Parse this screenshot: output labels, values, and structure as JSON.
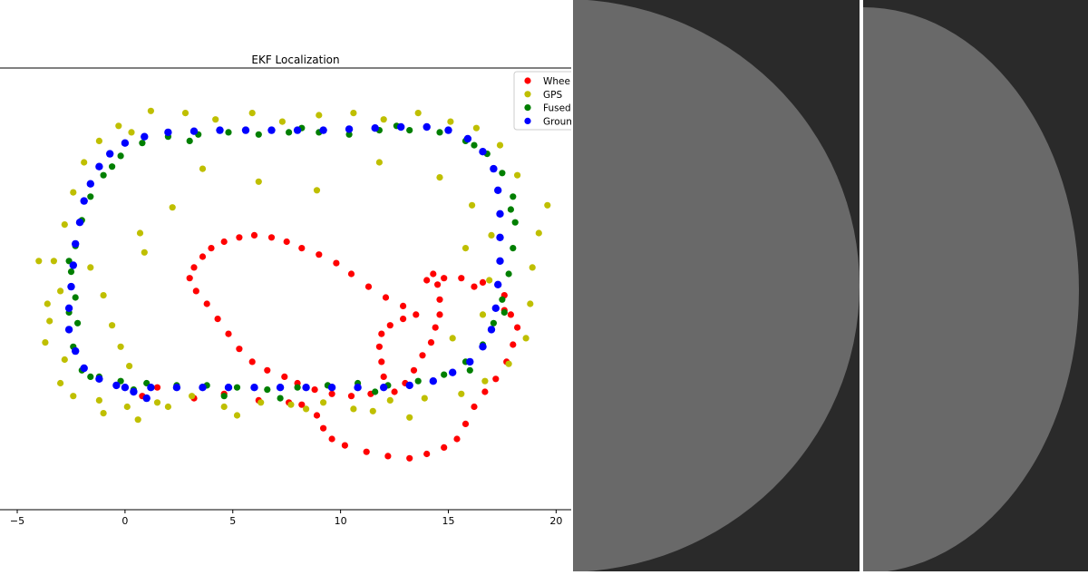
{
  "chart_data": {
    "type": "scatter",
    "title": "EKF Localization",
    "xlim": [
      -5.8,
      20.7
    ],
    "ylim": [
      -5.6,
      15.0
    ],
    "xticks": [
      -5,
      0,
      5,
      10,
      15,
      20
    ],
    "grid": false,
    "legend_position": "top-right",
    "series": [
      {
        "name": "Wheel",
        "color": "#ff0000",
        "points": [
          [
            0.8,
            -0.3
          ],
          [
            1.5,
            0.1
          ],
          [
            3.2,
            -0.4
          ],
          [
            4.6,
            -0.2
          ],
          [
            6.2,
            -0.5
          ],
          [
            7.6,
            -0.6
          ],
          [
            8.2,
            -0.7
          ],
          [
            8.9,
            -1.2
          ],
          [
            9.2,
            -1.8
          ],
          [
            9.6,
            -2.3
          ],
          [
            10.2,
            -2.6
          ],
          [
            11.2,
            -2.9
          ],
          [
            12.2,
            -3.1
          ],
          [
            13.2,
            -3.2
          ],
          [
            14.0,
            -3.0
          ],
          [
            14.8,
            -2.7
          ],
          [
            15.4,
            -2.3
          ],
          [
            15.8,
            -1.6
          ],
          [
            16.2,
            -0.8
          ],
          [
            16.7,
            -0.1
          ],
          [
            17.2,
            0.5
          ],
          [
            17.7,
            1.3
          ],
          [
            18.0,
            2.1
          ],
          [
            18.2,
            2.9
          ],
          [
            17.9,
            3.5
          ],
          [
            17.6,
            3.7
          ],
          [
            17.6,
            4.4
          ],
          [
            17.3,
            4.9
          ],
          [
            16.6,
            5.0
          ],
          [
            16.2,
            4.8
          ],
          [
            15.6,
            5.2
          ],
          [
            14.8,
            5.2
          ],
          [
            14.0,
            5.1
          ],
          [
            14.3,
            5.4
          ],
          [
            14.5,
            4.9
          ],
          [
            14.6,
            4.2
          ],
          [
            14.6,
            3.5
          ],
          [
            14.4,
            2.9
          ],
          [
            14.2,
            2.2
          ],
          [
            13.8,
            1.6
          ],
          [
            13.4,
            0.9
          ],
          [
            13.0,
            0.3
          ],
          [
            12.5,
            -0.1
          ],
          [
            12.0,
            0.6
          ],
          [
            11.9,
            1.3
          ],
          [
            11.8,
            2.0
          ],
          [
            11.9,
            2.6
          ],
          [
            12.3,
            3.0
          ],
          [
            12.9,
            3.3
          ],
          [
            13.5,
            3.5
          ],
          [
            12.9,
            3.9
          ],
          [
            12.1,
            4.3
          ],
          [
            11.3,
            4.8
          ],
          [
            10.5,
            5.4
          ],
          [
            9.8,
            5.9
          ],
          [
            9.0,
            6.3
          ],
          [
            8.2,
            6.6
          ],
          [
            7.5,
            6.9
          ],
          [
            6.8,
            7.1
          ],
          [
            6.0,
            7.2
          ],
          [
            5.3,
            7.1
          ],
          [
            4.6,
            6.9
          ],
          [
            4.0,
            6.6
          ],
          [
            3.6,
            6.2
          ],
          [
            3.2,
            5.7
          ],
          [
            3.0,
            5.2
          ],
          [
            3.3,
            4.6
          ],
          [
            3.8,
            4.0
          ],
          [
            4.3,
            3.3
          ],
          [
            4.8,
            2.6
          ],
          [
            5.3,
            1.9
          ],
          [
            5.9,
            1.3
          ],
          [
            6.6,
            0.9
          ],
          [
            7.4,
            0.6
          ],
          [
            8.0,
            0.3
          ],
          [
            8.8,
            -0.0
          ],
          [
            9.6,
            -0.2
          ],
          [
            10.5,
            -0.3
          ],
          [
            11.4,
            -0.2
          ]
        ]
      },
      {
        "name": "GPS",
        "color": "#bfbf00",
        "points": [
          [
            -4.0,
            6.0
          ],
          [
            -3.6,
            4.0
          ],
          [
            -3.7,
            2.2
          ],
          [
            -3.0,
            0.3
          ],
          [
            -2.4,
            -0.3
          ],
          [
            -1.2,
            -0.5
          ],
          [
            0.1,
            -0.8
          ],
          [
            1.5,
            -0.6
          ],
          [
            3.1,
            -0.3
          ],
          [
            4.6,
            -0.8
          ],
          [
            6.3,
            -0.6
          ],
          [
            7.7,
            -0.7
          ],
          [
            9.2,
            -0.6
          ],
          [
            10.6,
            -0.9
          ],
          [
            12.3,
            -0.5
          ],
          [
            13.9,
            -0.4
          ],
          [
            15.6,
            -0.2
          ],
          [
            16.7,
            0.4
          ],
          [
            17.8,
            1.2
          ],
          [
            18.6,
            2.4
          ],
          [
            18.8,
            4.0
          ],
          [
            18.9,
            5.7
          ],
          [
            19.2,
            7.3
          ],
          [
            19.6,
            8.6
          ],
          [
            18.2,
            10.0
          ],
          [
            17.4,
            11.4
          ],
          [
            16.3,
            12.2
          ],
          [
            15.1,
            12.5
          ],
          [
            13.6,
            12.9
          ],
          [
            12.0,
            12.6
          ],
          [
            10.6,
            12.9
          ],
          [
            9.0,
            12.8
          ],
          [
            7.3,
            12.5
          ],
          [
            5.9,
            12.9
          ],
          [
            4.2,
            12.6
          ],
          [
            2.8,
            12.9
          ],
          [
            1.2,
            13.0
          ],
          [
            -0.3,
            12.3
          ],
          [
            -1.2,
            11.6
          ],
          [
            -1.9,
            10.6
          ],
          [
            -2.4,
            9.2
          ],
          [
            -2.8,
            7.7
          ],
          [
            -3.3,
            6.0
          ],
          [
            -3.0,
            4.6
          ],
          [
            -3.5,
            3.2
          ],
          [
            -2.8,
            1.4
          ],
          [
            0.3,
            12.0
          ],
          [
            3.6,
            10.3
          ],
          [
            2.2,
            8.5
          ],
          [
            6.2,
            9.7
          ],
          [
            8.9,
            9.3
          ],
          [
            11.8,
            10.6
          ],
          [
            14.6,
            9.9
          ],
          [
            16.1,
            8.6
          ],
          [
            15.8,
            6.6
          ],
          [
            0.7,
            7.3
          ],
          [
            0.9,
            6.4
          ],
          [
            -1.6,
            5.7
          ],
          [
            -1.0,
            4.4
          ],
          [
            -0.6,
            3.0
          ],
          [
            -0.2,
            2.0
          ],
          [
            0.2,
            1.1
          ],
          [
            15.2,
            2.4
          ],
          [
            16.6,
            3.5
          ],
          [
            16.9,
            5.1
          ],
          [
            17.0,
            7.2
          ],
          [
            2.0,
            -0.8
          ],
          [
            5.2,
            -1.2
          ],
          [
            8.4,
            -0.9
          ],
          [
            11.5,
            -1.0
          ],
          [
            13.2,
            -1.3
          ],
          [
            -1.0,
            -1.1
          ],
          [
            0.6,
            -1.4
          ]
        ]
      },
      {
        "name": "Fused",
        "color": "#007f00",
        "points": [
          [
            -2.0,
            0.9
          ],
          [
            -1.2,
            0.6
          ],
          [
            -0.2,
            0.4
          ],
          [
            1.0,
            0.3
          ],
          [
            2.4,
            0.2
          ],
          [
            3.8,
            0.2
          ],
          [
            5.2,
            0.1
          ],
          [
            6.6,
            0.0
          ],
          [
            8.0,
            0.1
          ],
          [
            9.4,
            0.2
          ],
          [
            10.8,
            0.3
          ],
          [
            12.2,
            0.2
          ],
          [
            13.6,
            0.4
          ],
          [
            14.8,
            0.7
          ],
          [
            15.8,
            1.3
          ],
          [
            16.6,
            2.1
          ],
          [
            17.1,
            3.1
          ],
          [
            17.5,
            4.2
          ],
          [
            17.8,
            5.4
          ],
          [
            18.0,
            6.6
          ],
          [
            18.1,
            7.8
          ],
          [
            18.0,
            9.0
          ],
          [
            17.5,
            10.1
          ],
          [
            16.8,
            11.0
          ],
          [
            15.8,
            11.6
          ],
          [
            14.6,
            12.0
          ],
          [
            13.2,
            12.1
          ],
          [
            11.8,
            12.1
          ],
          [
            10.4,
            11.9
          ],
          [
            9.0,
            12.0
          ],
          [
            7.6,
            12.0
          ],
          [
            6.2,
            11.9
          ],
          [
            4.8,
            12.0
          ],
          [
            3.4,
            11.9
          ],
          [
            2.0,
            11.8
          ],
          [
            0.8,
            11.5
          ],
          [
            -0.2,
            10.9
          ],
          [
            -1.0,
            10.0
          ],
          [
            -1.6,
            9.0
          ],
          [
            -2.0,
            7.9
          ],
          [
            -2.3,
            6.7
          ],
          [
            -2.5,
            5.5
          ],
          [
            -2.3,
            4.3
          ],
          [
            -2.2,
            3.1
          ],
          [
            -2.4,
            2.0
          ],
          [
            -1.6,
            0.6
          ],
          [
            0.4,
            0.0
          ],
          [
            4.6,
            -0.3
          ],
          [
            7.2,
            -0.4
          ],
          [
            11.6,
            -0.1
          ],
          [
            16.0,
            0.9
          ],
          [
            17.6,
            3.6
          ],
          [
            17.9,
            8.4
          ],
          [
            16.2,
            11.4
          ],
          [
            12.6,
            12.3
          ],
          [
            8.2,
            12.2
          ],
          [
            3.0,
            11.6
          ],
          [
            -0.6,
            10.4
          ],
          [
            -2.6,
            6.0
          ],
          [
            -2.6,
            3.6
          ]
        ]
      },
      {
        "name": "Ground Truth",
        "color": "#0000ff",
        "points": [
          [
            1.0,
            -0.4
          ],
          [
            0.4,
            -0.1
          ],
          [
            -0.4,
            0.2
          ],
          [
            -1.2,
            0.5
          ],
          [
            -1.9,
            1.0
          ],
          [
            -2.3,
            1.8
          ],
          [
            -2.6,
            2.8
          ],
          [
            -2.6,
            3.8
          ],
          [
            -2.5,
            4.8
          ],
          [
            -2.4,
            5.8
          ],
          [
            -2.3,
            6.8
          ],
          [
            -2.1,
            7.8
          ],
          [
            -1.9,
            8.8
          ],
          [
            -1.6,
            9.6
          ],
          [
            -1.2,
            10.4
          ],
          [
            -0.7,
            11.0
          ],
          [
            0.0,
            11.5
          ],
          [
            0.9,
            11.8
          ],
          [
            2.0,
            12.0
          ],
          [
            3.2,
            12.05
          ],
          [
            4.4,
            12.1
          ],
          [
            5.6,
            12.1
          ],
          [
            6.8,
            12.1
          ],
          [
            8.0,
            12.1
          ],
          [
            9.2,
            12.1
          ],
          [
            10.4,
            12.15
          ],
          [
            11.6,
            12.2
          ],
          [
            12.8,
            12.25
          ],
          [
            14.0,
            12.25
          ],
          [
            15.0,
            12.1
          ],
          [
            15.9,
            11.7
          ],
          [
            16.6,
            11.1
          ],
          [
            17.1,
            10.3
          ],
          [
            17.3,
            9.3
          ],
          [
            17.4,
            8.2
          ],
          [
            17.4,
            7.1
          ],
          [
            17.4,
            6.0
          ],
          [
            17.3,
            4.9
          ],
          [
            17.2,
            3.8
          ],
          [
            17.0,
            2.8
          ],
          [
            16.6,
            2.0
          ],
          [
            16.0,
            1.3
          ],
          [
            15.2,
            0.8
          ],
          [
            14.3,
            0.4
          ],
          [
            13.2,
            0.2
          ],
          [
            12.0,
            0.1
          ],
          [
            10.8,
            0.1
          ],
          [
            9.6,
            0.1
          ],
          [
            8.4,
            0.1
          ],
          [
            7.2,
            0.1
          ],
          [
            6.0,
            0.1
          ],
          [
            4.8,
            0.1
          ],
          [
            3.6,
            0.1
          ],
          [
            2.4,
            0.1
          ],
          [
            1.2,
            0.1
          ],
          [
            0.0,
            0.1
          ]
        ]
      }
    ]
  },
  "panels": [
    {
      "background": "#2a2a2a",
      "disc": "#696969"
    },
    {
      "background": "#2a2a2a",
      "disc": "#696969"
    }
  ],
  "divider_color": "#ffffff"
}
